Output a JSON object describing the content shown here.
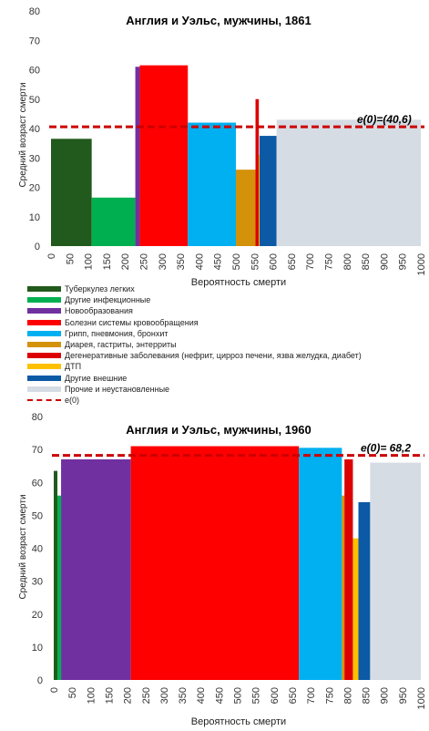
{
  "legend": [
    {
      "label": "Туберкулез легких",
      "color": "#215a1c"
    },
    {
      "label": "Другие инфекционные",
      "color": "#00b050"
    },
    {
      "label": "Новообразования",
      "color": "#7030a0"
    },
    {
      "label": "Болезни системы кровообращения",
      "color": "#ff0000"
    },
    {
      "label": "Грипп, пневмония, бронхит",
      "color": "#00b0f0"
    },
    {
      "label": "Диарея, гастриты, энтерриты",
      "color": "#d4920a"
    },
    {
      "label": "Дегенеративные заболевания (нефрит, цирроз печени, язва желудка, диабет)",
      "color": "#dd0000"
    },
    {
      "label": "ДТП",
      "color": "#ffc000"
    },
    {
      "label": "Другие внешние",
      "color": "#0c5aa6"
    },
    {
      "label": "Прочие и неустановленные",
      "color": "#d6dce4"
    },
    {
      "label": "e(0)",
      "color": "#cc0000",
      "dashed": true
    }
  ],
  "chart_data": [
    {
      "type": "bar",
      "title": "Англия и Уэльс, мужчины, 1861",
      "xlabel": "Вероятность  смерти",
      "ylabel": "Средний  возраст смерти",
      "xlim": [
        0,
        1000
      ],
      "ylim": [
        0,
        80
      ],
      "xticks": [
        0,
        50,
        100,
        150,
        200,
        250,
        300,
        350,
        400,
        450,
        500,
        550,
        600,
        650,
        700,
        750,
        800,
        850,
        900,
        950,
        1000
      ],
      "yticks": [
        0,
        10,
        20,
        30,
        40,
        50,
        60,
        70,
        80
      ],
      "grid": false,
      "e0": 40.6,
      "e0_label": "e(0)=(40,6)",
      "segments": [
        {
          "category": "Туберкулез легких",
          "x0": 0,
          "x1": 110,
          "value": 36.5
        },
        {
          "category": "Другие инфекционные",
          "x0": 110,
          "x1": 228,
          "value": 16.5
        },
        {
          "category": "Новообразования",
          "x0": 228,
          "x1": 240,
          "value": 61
        },
        {
          "category": "Болезни системы кровообращения",
          "x0": 240,
          "x1": 370,
          "value": 61.5
        },
        {
          "category": "Грипп, пневмония, бронхит",
          "x0": 370,
          "x1": 500,
          "value": 42
        },
        {
          "category": "Диарея, гастриты, энтерриты",
          "x0": 500,
          "x1": 553,
          "value": 26
        },
        {
          "category": "Дегенеративные заболевания (нефрит, цирроз печени, язва желудка, диабет)",
          "x0": 553,
          "x1": 562,
          "value": 50
        },
        {
          "category": "ДТП",
          "x0": 562,
          "x1": 564,
          "value": 31
        },
        {
          "category": "Другие внешние",
          "x0": 564,
          "x1": 610,
          "value": 37.5
        },
        {
          "category": "Прочие и неустановленные",
          "x0": 610,
          "x1": 1000,
          "value": 43
        }
      ]
    },
    {
      "type": "bar",
      "title": "Англия и Уэльс, мужчины, 1960",
      "xlabel": "Вероятность  смерти",
      "ylabel": "Средний  возраст смерти",
      "xlim": [
        0,
        1000
      ],
      "ylim": [
        0,
        80
      ],
      "xticks": [
        0,
        50,
        100,
        150,
        200,
        250,
        300,
        350,
        400,
        450,
        500,
        550,
        600,
        650,
        700,
        750,
        800,
        850,
        900,
        950,
        1000
      ],
      "yticks": [
        0,
        10,
        20,
        30,
        40,
        50,
        60,
        70,
        80
      ],
      "grid": false,
      "e0": 68.2,
      "e0_label": "e(0)= 68,2",
      "segments": [
        {
          "category": "Туберкулез легких",
          "x0": 0,
          "x1": 10,
          "value": 63.5
        },
        {
          "category": "Другие инфекционные",
          "x0": 10,
          "x1": 20,
          "value": 56
        },
        {
          "category": "Новообразования",
          "x0": 20,
          "x1": 210,
          "value": 67
        },
        {
          "category": "Болезни системы кровообращения",
          "x0": 210,
          "x1": 668,
          "value": 71
        },
        {
          "category": "Грипп, пневмония, бронхит",
          "x0": 668,
          "x1": 785,
          "value": 70.5
        },
        {
          "category": "Диарея, гастриты, энтерриты",
          "x0": 785,
          "x1": 792,
          "value": 56
        },
        {
          "category": "Дегенеративные заболевания (нефрит, цирроз печени, язва желудка, диабет)",
          "x0": 792,
          "x1": 815,
          "value": 67
        },
        {
          "category": "ДТП",
          "x0": 815,
          "x1": 830,
          "value": 43
        },
        {
          "category": "Другие внешние",
          "x0": 830,
          "x1": 862,
          "value": 54
        },
        {
          "category": "Прочие и неустановленные",
          "x0": 862,
          "x1": 1000,
          "value": 66
        }
      ]
    }
  ]
}
